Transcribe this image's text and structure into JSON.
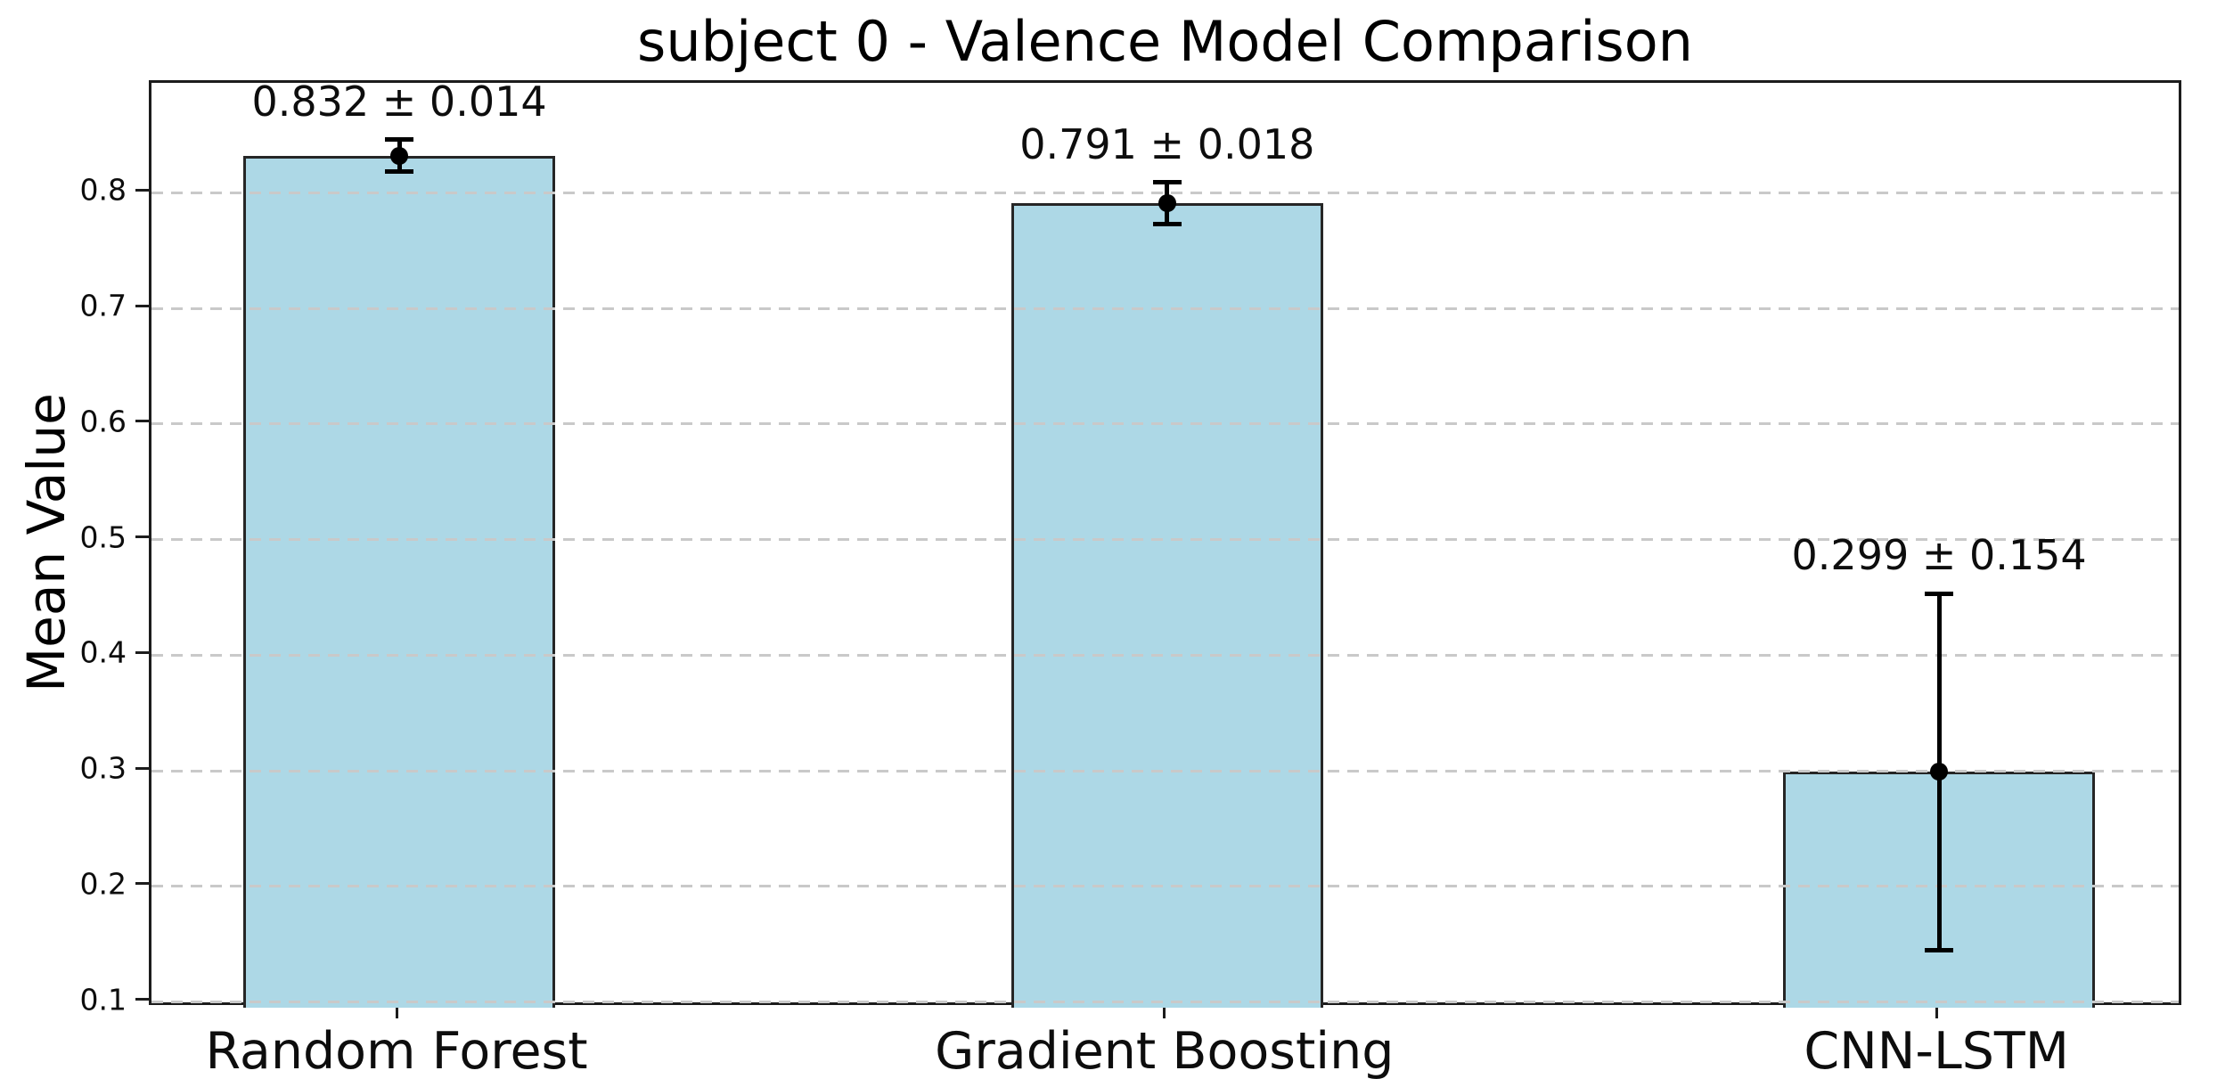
{
  "chart_data": {
    "type": "bar",
    "title": "subject 0 - Valence Model Comparison",
    "xlabel": "",
    "ylabel": "Mean Value",
    "categories": [
      "Random Forest",
      "Gradient Boosting",
      "CNN-LSTM"
    ],
    "values": [
      0.832,
      0.791,
      0.299
    ],
    "errors": [
      0.014,
      0.018,
      0.154
    ],
    "annotations": [
      "0.832 ± 0.014",
      "0.791 ± 0.018",
      "0.299 ± 0.154"
    ],
    "yticks": [
      "0.1",
      "0.2",
      "0.3",
      "0.4",
      "0.5",
      "0.6",
      "0.7",
      "0.8"
    ],
    "ytick_values": [
      0.1,
      0.2,
      0.3,
      0.4,
      0.5,
      0.6,
      0.7,
      0.8
    ],
    "ylim": [
      0.095,
      0.895
    ],
    "grid": "horizontal-dashed",
    "legend": "none",
    "colors": {
      "bar_fill": "#ADD8E6",
      "bar_edge": "#262626",
      "error_bar": "#000000",
      "gridline": "#c9c9c9",
      "spine": "#1c1c1c",
      "text": "#000000",
      "background": "#ffffff"
    }
  }
}
